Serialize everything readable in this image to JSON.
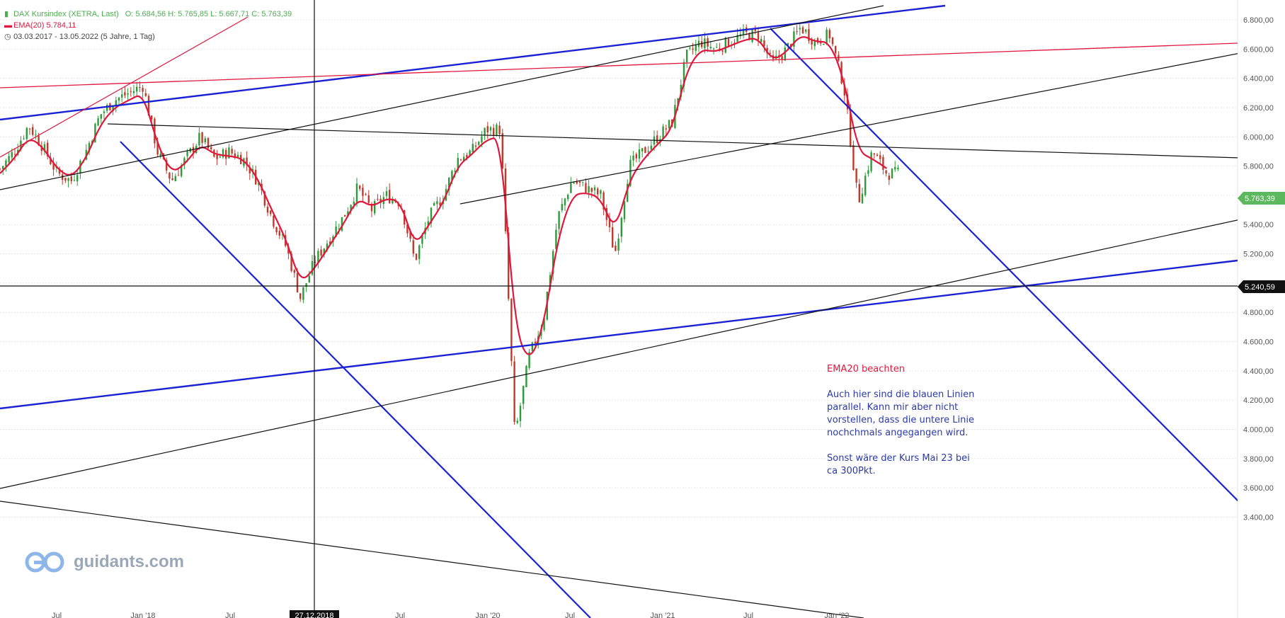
{
  "legend": {
    "instrument": "DAX Kursindex (XETRA, Last)",
    "ohlc": "O: 5.684,56   H: 5.765,85   L: 5.667,71   C: 5.763,39",
    "ema": "EMA(20)   5.784,11",
    "range": "03.03.2017 - 13.05.2022    (5 Jahre, 1 Tag)"
  },
  "note": {
    "heading": "EMA20 beachten",
    "para1": "Auch hier sind die blauen Linien parallel. Kann mir aber nicht vorstellen, dass die untere Linie nochchmals angegangen wird.",
    "para2": "Sonst wäre der Kurs Mai 23 bei ca 300Pkt."
  },
  "logo": "guidants.com",
  "colors": {
    "up": "#2e9b3a",
    "down": "#c0392b",
    "ema": "#e0173d",
    "blue_line": "#1a22d4",
    "black_line": "#111111",
    "last_price_tag": "#5cb85c",
    "level_tag": "#111111"
  },
  "chart_data": {
    "type": "candlestick",
    "title": "DAX Kursindex (XETRA, Last)",
    "y_ticks": [
      "3.400,00",
      "3.600,00",
      "3.800,00",
      "4.000,00",
      "4.200,00",
      "4.400,00",
      "4.600,00",
      "4.800,00",
      "5.000,00",
      "5.200,00",
      "5.400,00",
      "5.600,00",
      "5.800,00",
      "6.000,00",
      "6.200,00",
      "6.400,00",
      "6.600,00",
      "6.800,00"
    ],
    "x_ticks": [
      "Jul",
      "Jan '18",
      "Jul",
      "27.12.2018",
      "Jul",
      "Jan '20",
      "Jul",
      "Jan '21",
      "Jul",
      "Jan '22"
    ],
    "ylim": [
      3300,
      6900
    ],
    "last_price_tag": "5.763,39",
    "horizontal_level_tag": "5.240,59",
    "price_path": [
      [
        "2017-03",
        5780
      ],
      [
        "2017-04",
        5900
      ],
      [
        "2017-05",
        6080
      ],
      [
        "2017-06",
        5930
      ],
      [
        "2017-07",
        5750
      ],
      [
        "2017-08",
        5700
      ],
      [
        "2017-09",
        5900
      ],
      [
        "2017-10",
        6150
      ],
      [
        "2017-11",
        6250
      ],
      [
        "2017-12",
        6300
      ],
      [
        "2018-01",
        6350
      ],
      [
        "2018-02",
        5900
      ],
      [
        "2018-03",
        5700
      ],
      [
        "2018-04",
        5850
      ],
      [
        "2018-05",
        6000
      ],
      [
        "2018-06",
        5850
      ],
      [
        "2018-07",
        5900
      ],
      [
        "2018-08",
        5850
      ],
      [
        "2018-09",
        5700
      ],
      [
        "2018-10",
        5450
      ],
      [
        "2018-11",
        5250
      ],
      [
        "2018-12",
        4900
      ],
      [
        "2019-01",
        5150
      ],
      [
        "2019-02",
        5300
      ],
      [
        "2019-03",
        5450
      ],
      [
        "2019-04",
        5650
      ],
      [
        "2019-05",
        5500
      ],
      [
        "2019-06",
        5600
      ],
      [
        "2019-07",
        5550
      ],
      [
        "2019-08",
        5150
      ],
      [
        "2019-09",
        5450
      ],
      [
        "2019-10",
        5600
      ],
      [
        "2019-11",
        5850
      ],
      [
        "2019-12",
        5900
      ],
      [
        "2020-01",
        6050
      ],
      [
        "2020-02",
        6050
      ],
      [
        "2020-03",
        3950
      ],
      [
        "2020-04",
        4500
      ],
      [
        "2020-05",
        4750
      ],
      [
        "2020-06",
        5450
      ],
      [
        "2020-07",
        5700
      ],
      [
        "2020-08",
        5650
      ],
      [
        "2020-09",
        5600
      ],
      [
        "2020-10",
        5200
      ],
      [
        "2020-11",
        5800
      ],
      [
        "2020-12",
        5900
      ],
      [
        "2021-01",
        6000
      ],
      [
        "2021-02",
        6100
      ],
      [
        "2021-03",
        6550
      ],
      [
        "2021-04",
        6650
      ],
      [
        "2021-05",
        6600
      ],
      [
        "2021-06",
        6650
      ],
      [
        "2021-07",
        6700
      ],
      [
        "2021-08",
        6700
      ],
      [
        "2021-09",
        6500
      ],
      [
        "2021-10",
        6600
      ],
      [
        "2021-11",
        6750
      ],
      [
        "2021-12",
        6650
      ],
      [
        "2022-01",
        6700
      ],
      [
        "2022-02",
        6350
      ],
      [
        "2022-03",
        5550
      ],
      [
        "2022-04",
        5900
      ],
      [
        "2022-05",
        5750
      ]
    ],
    "ema_path": [
      [
        "2017-03",
        5750
      ],
      [
        "2017-04",
        5850
      ],
      [
        "2017-05",
        6000
      ],
      [
        "2017-06",
        5930
      ],
      [
        "2017-07",
        5780
      ],
      [
        "2017-08",
        5720
      ],
      [
        "2017-09",
        5850
      ],
      [
        "2017-10",
        6080
      ],
      [
        "2017-11",
        6200
      ],
      [
        "2017-12",
        6250
      ],
      [
        "2018-01",
        6300
      ],
      [
        "2018-02",
        5950
      ],
      [
        "2018-03",
        5750
      ],
      [
        "2018-04",
        5820
      ],
      [
        "2018-05",
        5950
      ],
      [
        "2018-06",
        5880
      ],
      [
        "2018-07",
        5870
      ],
      [
        "2018-08",
        5850
      ],
      [
        "2018-09",
        5720
      ],
      [
        "2018-10",
        5500
      ],
      [
        "2018-11",
        5300
      ],
      [
        "2018-12",
        5000
      ],
      [
        "2019-01",
        5100
      ],
      [
        "2019-02",
        5250
      ],
      [
        "2019-03",
        5400
      ],
      [
        "2019-04",
        5580
      ],
      [
        "2019-05",
        5520
      ],
      [
        "2019-06",
        5580
      ],
      [
        "2019-07",
        5560
      ],
      [
        "2019-08",
        5250
      ],
      [
        "2019-09",
        5400
      ],
      [
        "2019-10",
        5550
      ],
      [
        "2019-11",
        5800
      ],
      [
        "2019-12",
        5880
      ],
      [
        "2020-01",
        5980
      ],
      [
        "2020-02",
        6000
      ],
      [
        "2020-03",
        4700
      ],
      [
        "2020-04",
        4450
      ],
      [
        "2020-05",
        4700
      ],
      [
        "2020-06",
        5300
      ],
      [
        "2020-07",
        5600
      ],
      [
        "2020-08",
        5620
      ],
      [
        "2020-09",
        5580
      ],
      [
        "2020-10",
        5350
      ],
      [
        "2020-11",
        5700
      ],
      [
        "2020-12",
        5850
      ],
      [
        "2021-01",
        5950
      ],
      [
        "2021-02",
        6050
      ],
      [
        "2021-03",
        6450
      ],
      [
        "2021-04",
        6600
      ],
      [
        "2021-05",
        6580
      ],
      [
        "2021-06",
        6620
      ],
      [
        "2021-07",
        6660
      ],
      [
        "2021-08",
        6680
      ],
      [
        "2021-09",
        6520
      ],
      [
        "2021-10",
        6580
      ],
      [
        "2021-11",
        6700
      ],
      [
        "2021-12",
        6650
      ],
      [
        "2022-01",
        6650
      ],
      [
        "2022-02",
        6400
      ],
      [
        "2022-03",
        5900
      ],
      [
        "2022-04",
        5850
      ],
      [
        "2022-05",
        5784
      ]
    ]
  }
}
